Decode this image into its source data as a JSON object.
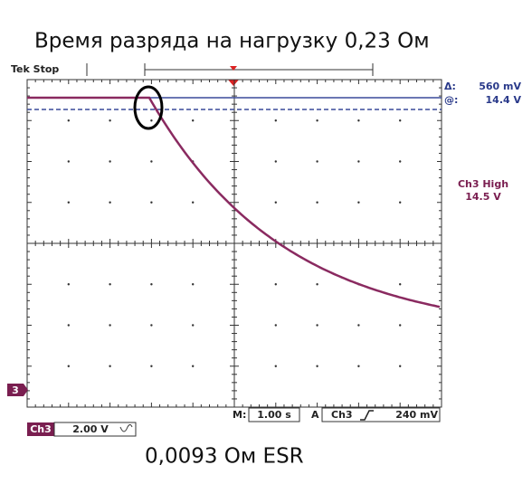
{
  "title": "Время разряда на нагрузку  0,23 Ом",
  "status": "Tek Stop",
  "cursor": {
    "delta_label": "Δ:",
    "delta_value": "560 mV",
    "at_label": "@:",
    "at_value": "14.4 V"
  },
  "trigger_info": {
    "label": "Ch3 High",
    "value": "14.5 V"
  },
  "channel_marker": "3",
  "channel": {
    "name": "Ch3",
    "scale": "2.00 V"
  },
  "timebase": {
    "label": "M:",
    "value": "1.00 s"
  },
  "trigger": {
    "label": "A",
    "source": "Ch3",
    "level": "240 mV"
  },
  "caption": "0,0093 Ом ESR"
}
